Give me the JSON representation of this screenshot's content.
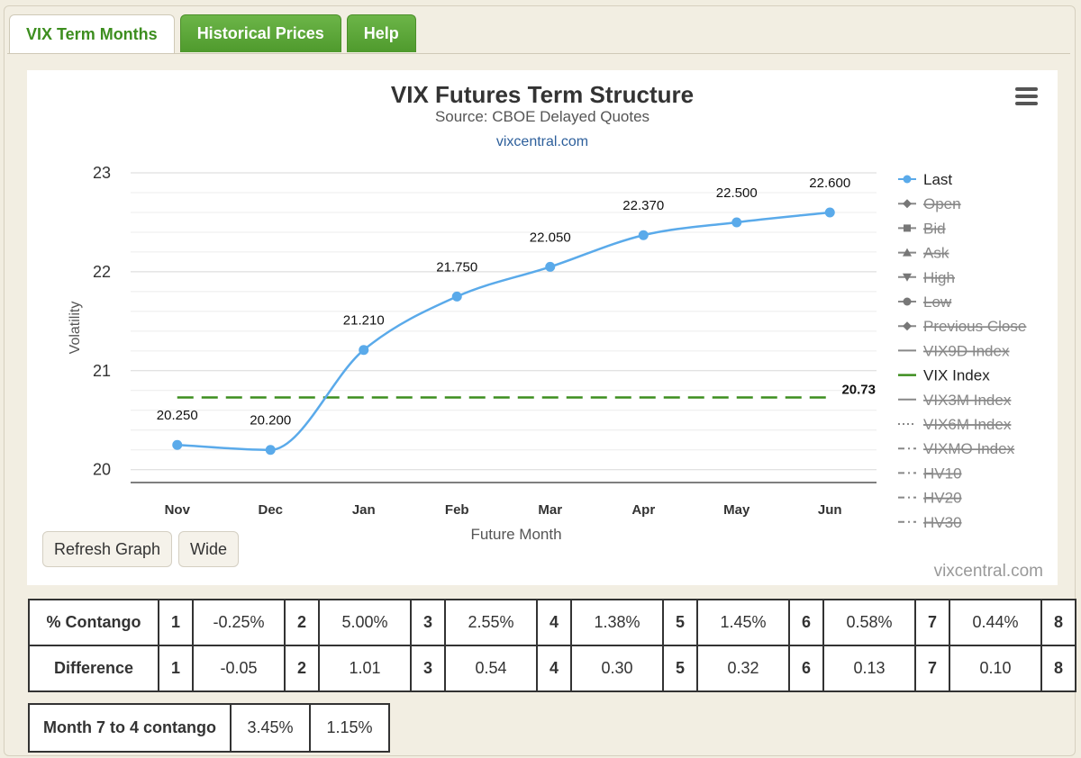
{
  "tabs": [
    {
      "label": "VIX Term Months",
      "active": true
    },
    {
      "label": "Historical Prices",
      "active": false
    },
    {
      "label": "Help",
      "active": false
    }
  ],
  "buttons": {
    "refresh": "Refresh Graph",
    "wide": "Wide"
  },
  "credit": "vixcentral.com",
  "chart_data": {
    "type": "line",
    "title": "VIX Futures Term Structure",
    "subtitle": "Source: CBOE Delayed Quotes",
    "subtitle_link": "vixcentral.com",
    "xlabel": "Future Month",
    "ylabel": "Volatility",
    "categories": [
      "Nov",
      "Dec",
      "Jan",
      "Feb",
      "Mar",
      "Apr",
      "May",
      "Jun"
    ],
    "ylim": [
      19.87,
      23.0
    ],
    "yticks": [
      20,
      21,
      22,
      23
    ],
    "grid": true,
    "series": [
      {
        "name": "Last",
        "color": "#5aaaea",
        "values": [
          20.25,
          20.2,
          21.21,
          21.75,
          22.05,
          22.37,
          22.5,
          22.6
        ],
        "labels": [
          "20.250",
          "20.200",
          "21.210",
          "21.750",
          "22.050",
          "22.370",
          "22.500",
          "22.600"
        ]
      },
      {
        "name": "VIX Index",
        "color": "#3d8e1f",
        "value": 20.73,
        "label": "20.73"
      }
    ],
    "legend": {
      "placement": "right",
      "items": [
        {
          "name": "Last",
          "marker": "circle",
          "line": "solid",
          "enabled": true
        },
        {
          "name": "Open",
          "marker": "diamond",
          "line": "solid",
          "enabled": false
        },
        {
          "name": "Bid",
          "marker": "square",
          "line": "solid",
          "enabled": false
        },
        {
          "name": "Ask",
          "marker": "triangle",
          "line": "solid",
          "enabled": false
        },
        {
          "name": "High",
          "marker": "triangle-down",
          "line": "solid",
          "enabled": false
        },
        {
          "name": "Low",
          "marker": "circle",
          "line": "solid",
          "enabled": false
        },
        {
          "name": "Previous Close",
          "marker": "diamond",
          "line": "solid",
          "enabled": false
        },
        {
          "name": "VIX9D Index",
          "marker": "none",
          "line": "solid",
          "enabled": false
        },
        {
          "name": "VIX Index",
          "marker": "none",
          "line": "solid",
          "enabled": true,
          "color": "#3d8e1f"
        },
        {
          "name": "VIX3M Index",
          "marker": "none",
          "line": "solid",
          "enabled": false
        },
        {
          "name": "VIX6M Index",
          "marker": "none",
          "line": "dotted",
          "enabled": false
        },
        {
          "name": "VIXMO Index",
          "marker": "none",
          "line": "dashdot",
          "enabled": false
        },
        {
          "name": "HV10",
          "marker": "none",
          "line": "dashdot",
          "enabled": false
        },
        {
          "name": "HV20",
          "marker": "none",
          "line": "dashdot",
          "enabled": false
        },
        {
          "name": "HV30",
          "marker": "none",
          "line": "dashdot",
          "enabled": false
        }
      ]
    }
  },
  "contango_table": {
    "rows": [
      {
        "label": "% Contango",
        "cells": [
          [
            "1",
            "-0.25%"
          ],
          [
            "2",
            "5.00%"
          ],
          [
            "3",
            "2.55%"
          ],
          [
            "4",
            "1.38%"
          ],
          [
            "5",
            "1.45%"
          ],
          [
            "6",
            "0.58%"
          ],
          [
            "7",
            "0.44%"
          ],
          [
            "8"
          ]
        ]
      },
      {
        "label": "Difference",
        "cells": [
          [
            "1",
            "-0.05"
          ],
          [
            "2",
            "1.01"
          ],
          [
            "3",
            "0.54"
          ],
          [
            "4",
            "0.30"
          ],
          [
            "5",
            "0.32"
          ],
          [
            "6",
            "0.13"
          ],
          [
            "7",
            "0.10"
          ],
          [
            "8"
          ]
        ]
      }
    ]
  },
  "summary_table": {
    "label": "Month 7 to 4 contango",
    "values": [
      "3.45%",
      "1.15%"
    ]
  }
}
